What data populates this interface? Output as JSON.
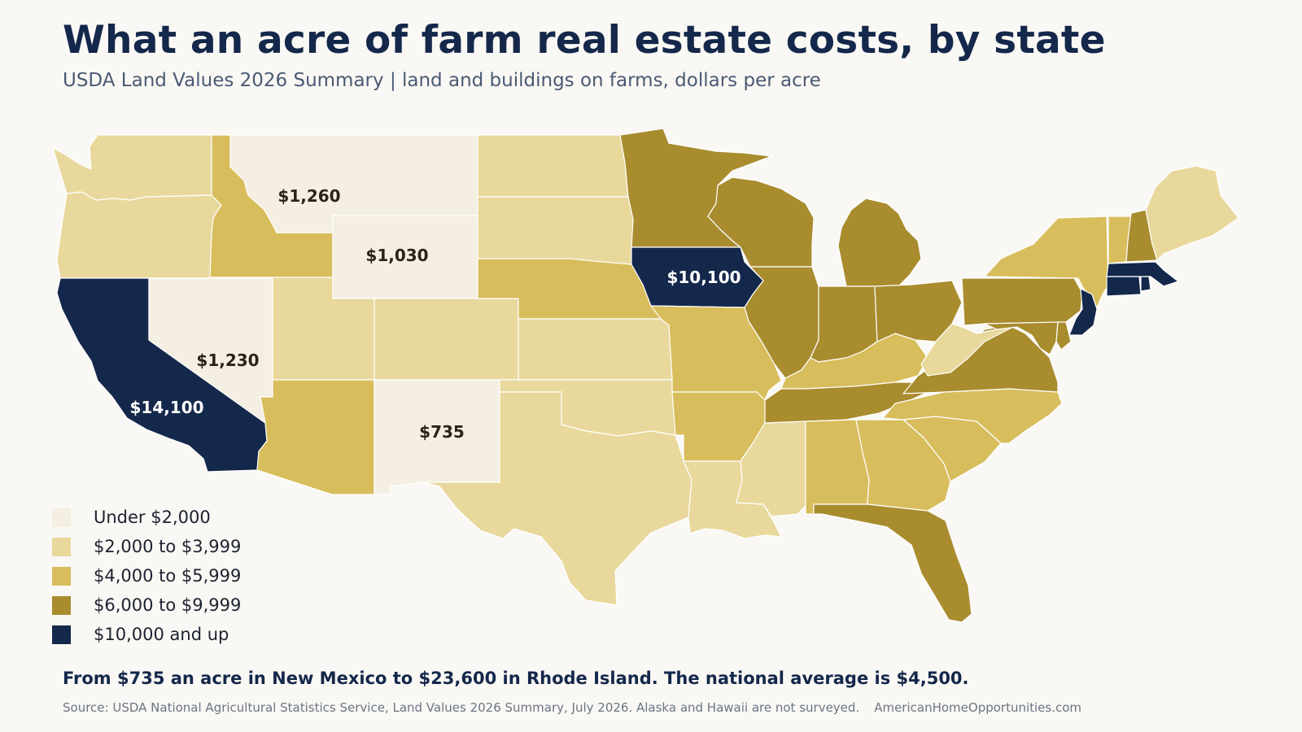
{
  "title": "What an acre of farm real estate costs, by state",
  "subtitle": "USDA Land Values 2026 Summary  |  land and buildings on farms, dollars per acre",
  "colors": {
    "background": "#faf8f4",
    "border": "#ffffff",
    "bins": [
      "#f4efe2",
      "#e8d89c",
      "#d8bd5c",
      "#a98c2e",
      "#14284b"
    ]
  },
  "legend": [
    {
      "label": "Under $2,000",
      "color": "#f4efe2"
    },
    {
      "label": "$2,000 to $3,999",
      "color": "#e8d89c"
    },
    {
      "label": "$4,000 to $5,999",
      "color": "#d8bd5c"
    },
    {
      "label": "$6,000 to $9,999",
      "color": "#a98c2e"
    },
    {
      "label": "$10,000 and up",
      "color": "#14284b"
    }
  ],
  "states": [
    {
      "id": "WA",
      "bin": 1
    },
    {
      "id": "OR",
      "bin": 1
    },
    {
      "id": "CA",
      "bin": 4
    },
    {
      "id": "ID",
      "bin": 2
    },
    {
      "id": "NV",
      "bin": 0
    },
    {
      "id": "MT",
      "bin": 0
    },
    {
      "id": "WY",
      "bin": 0
    },
    {
      "id": "UT",
      "bin": 1
    },
    {
      "id": "AZ",
      "bin": 2
    },
    {
      "id": "CO",
      "bin": 1
    },
    {
      "id": "NM",
      "bin": 0
    },
    {
      "id": "ND",
      "bin": 1
    },
    {
      "id": "SD",
      "bin": 1
    },
    {
      "id": "NE",
      "bin": 2
    },
    {
      "id": "KS",
      "bin": 1
    },
    {
      "id": "OK",
      "bin": 1
    },
    {
      "id": "TX",
      "bin": 1
    },
    {
      "id": "MN",
      "bin": 3
    },
    {
      "id": "IA",
      "bin": 4
    },
    {
      "id": "MO",
      "bin": 2
    },
    {
      "id": "AR",
      "bin": 2
    },
    {
      "id": "LA",
      "bin": 1
    },
    {
      "id": "WI",
      "bin": 3
    },
    {
      "id": "IL",
      "bin": 3
    },
    {
      "id": "MS",
      "bin": 1
    },
    {
      "id": "MI",
      "bin": 3
    },
    {
      "id": "IN",
      "bin": 3
    },
    {
      "id": "KY",
      "bin": 2
    },
    {
      "id": "TN",
      "bin": 3
    },
    {
      "id": "AL",
      "bin": 2
    },
    {
      "id": "OH",
      "bin": 3
    },
    {
      "id": "GA",
      "bin": 2
    },
    {
      "id": "FL",
      "bin": 3
    },
    {
      "id": "SC",
      "bin": 2
    },
    {
      "id": "NC",
      "bin": 2
    },
    {
      "id": "VA",
      "bin": 3
    },
    {
      "id": "WV",
      "bin": 1
    },
    {
      "id": "PA",
      "bin": 3
    },
    {
      "id": "NY",
      "bin": 2
    },
    {
      "id": "MD",
      "bin": 3
    },
    {
      "id": "DE",
      "bin": 3
    },
    {
      "id": "NJ",
      "bin": 4
    },
    {
      "id": "CT",
      "bin": 4
    },
    {
      "id": "RI",
      "bin": 4
    },
    {
      "id": "MA",
      "bin": 4
    },
    {
      "id": "VT",
      "bin": 2
    },
    {
      "id": "NH",
      "bin": 3
    },
    {
      "id": "ME",
      "bin": 1
    }
  ],
  "callouts": [
    {
      "state": "MT",
      "text": "$1,260"
    },
    {
      "state": "WY",
      "text": "$1,030"
    },
    {
      "state": "NV",
      "text": "$1,230"
    },
    {
      "state": "CA",
      "text": "$14,100"
    },
    {
      "state": "NM",
      "text": "$735"
    },
    {
      "state": "IA",
      "text": "$10,100"
    }
  ],
  "takeaway": "From $735 an acre in New Mexico to $23,600 in Rhode Island. The national average is $4,500.",
  "source": "Source: USDA National Agricultural Statistics Service, Land Values 2026 Summary, July 2026. Alaska and Hawaii are not surveyed.",
  "site": "AmericanHomeOpportunities.com"
}
